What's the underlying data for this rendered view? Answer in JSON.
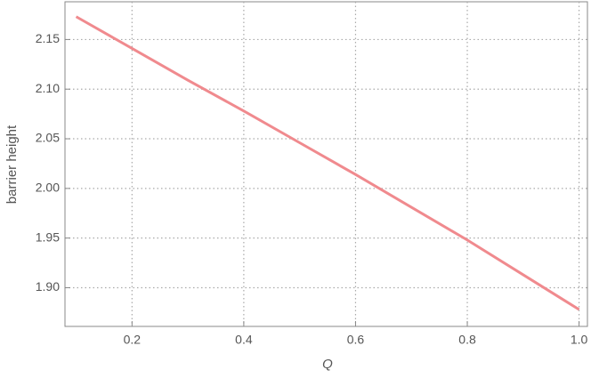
{
  "chart_data": {
    "type": "line",
    "x_label": "Q",
    "y_label": "barrier height",
    "x": [
      0.1,
      0.2,
      0.3,
      0.4,
      0.5,
      0.6,
      0.7,
      0.8,
      0.9,
      1.0
    ],
    "series": [
      {
        "name": "barrier height",
        "color": "#f08a8e",
        "values": [
          2.173,
          2.141,
          2.109,
          2.078,
          2.046,
          2.014,
          1.981,
          1.948,
          1.913,
          1.878
        ]
      }
    ],
    "xlim": [
      0.08,
      1.015
    ],
    "ylim": [
      1.861,
      2.188
    ],
    "xticks": [
      0.2,
      0.4,
      0.6,
      0.8,
      {
        "value": 1.0,
        "label": "1.0"
      }
    ],
    "yticks": [
      {
        "value": 1.9,
        "label": "1.90"
      },
      1.95,
      {
        "value": 2.0,
        "label": "2.00"
      },
      2.05,
      {
        "value": 2.1,
        "label": "2.10"
      },
      2.15
    ],
    "grid": true
  }
}
